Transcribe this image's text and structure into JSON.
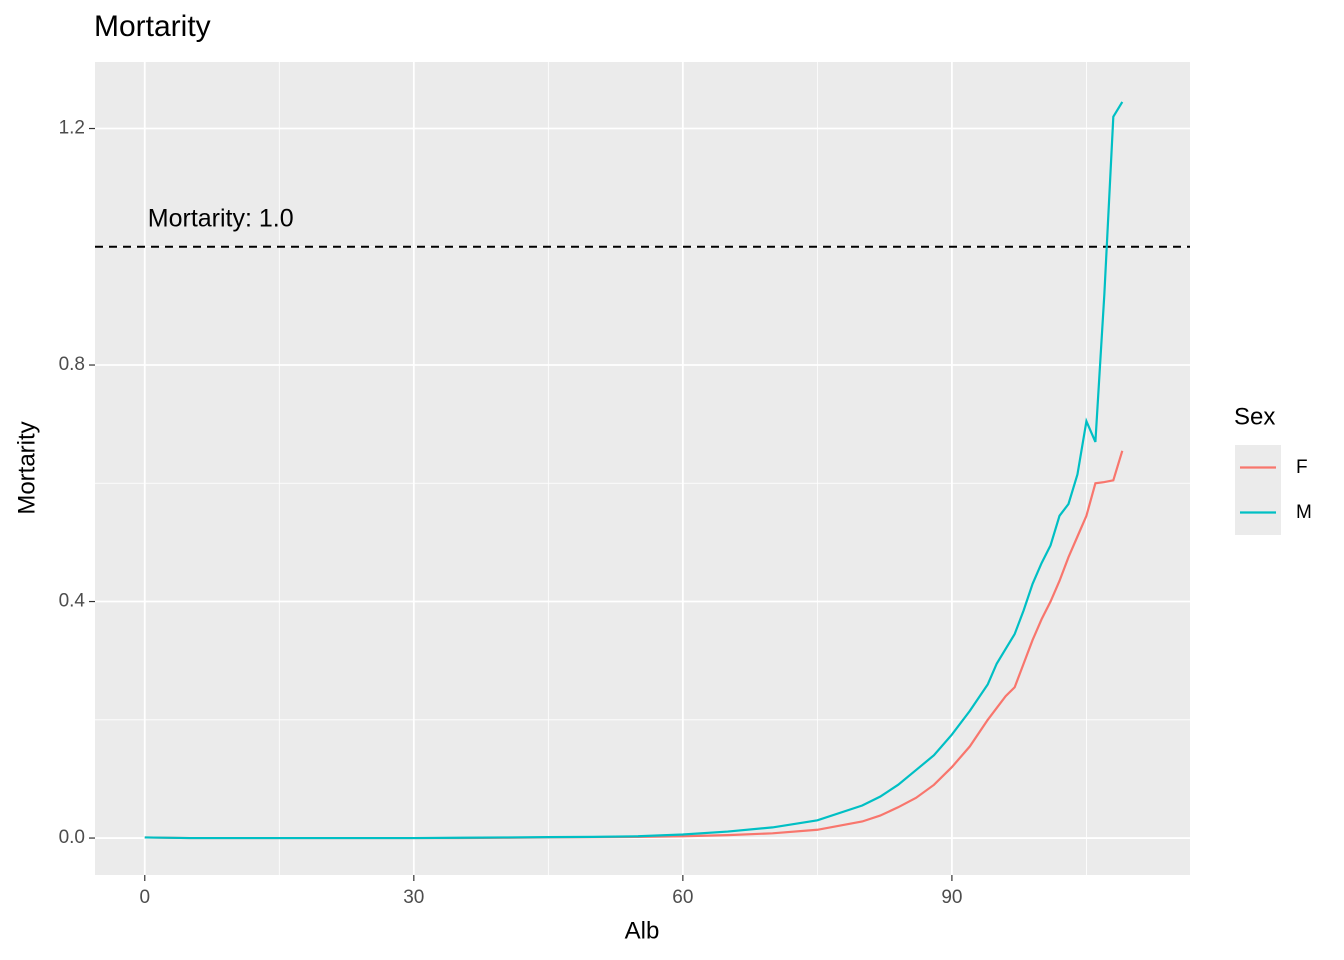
{
  "chart_data": {
    "type": "line",
    "title": "Mortarity",
    "x_label": "Alb",
    "y_label": "Mortarity",
    "x": [
      0,
      5,
      10,
      15,
      20,
      25,
      30,
      35,
      40,
      45,
      50,
      55,
      60,
      65,
      70,
      75,
      80,
      82,
      84,
      86,
      88,
      90,
      92,
      94,
      95,
      96,
      97,
      98,
      99,
      100,
      101,
      102,
      103,
      104,
      105,
      106,
      107,
      108,
      109
    ],
    "series": [
      {
        "name": "F",
        "color": "#f8766d",
        "values": [
          0.001,
          0,
          0,
          0,
          0,
          0,
          0,
          0,
          0.0005,
          0.001,
          0.0015,
          0.002,
          0.003,
          0.005,
          0.008,
          0.014,
          0.028,
          0.038,
          0.052,
          0.068,
          0.09,
          0.12,
          0.155,
          0.2,
          0.22,
          0.24,
          0.255,
          0.295,
          0.335,
          0.37,
          0.4,
          0.435,
          0.475,
          0.51,
          0.545,
          0.6,
          0.602,
          0.605,
          0.655
        ]
      },
      {
        "name": "M",
        "color": "#00bfc4",
        "values": [
          0.001,
          0,
          0,
          0,
          0,
          0,
          0,
          0.0005,
          0.001,
          0.0015,
          0.002,
          0.003,
          0.006,
          0.011,
          0.018,
          0.03,
          0.055,
          0.07,
          0.09,
          0.115,
          0.14,
          0.175,
          0.215,
          0.26,
          0.295,
          0.32,
          0.345,
          0.385,
          0.43,
          0.465,
          0.495,
          0.545,
          0.565,
          0.615,
          0.705,
          0.67,
          0.92,
          1.22,
          1.245
        ]
      }
    ],
    "hline": 1.0,
    "annotation": "Mortarity: 1.0",
    "xlim": [
      -5.55,
      116.55
    ],
    "xticks": [
      0,
      30,
      60,
      90
    ],
    "ylim": [
      -0.0625,
      1.3125
    ],
    "yticks": [
      {
        "value": 0,
        "label": "0.0"
      },
      {
        "value": 0.4,
        "label": "0.4"
      },
      {
        "value": 0.8,
        "label": "0.8"
      },
      {
        "value": 1.2,
        "label": "1.2"
      }
    ],
    "grid": true,
    "legend_title": "Sex",
    "legend_position": "right"
  }
}
